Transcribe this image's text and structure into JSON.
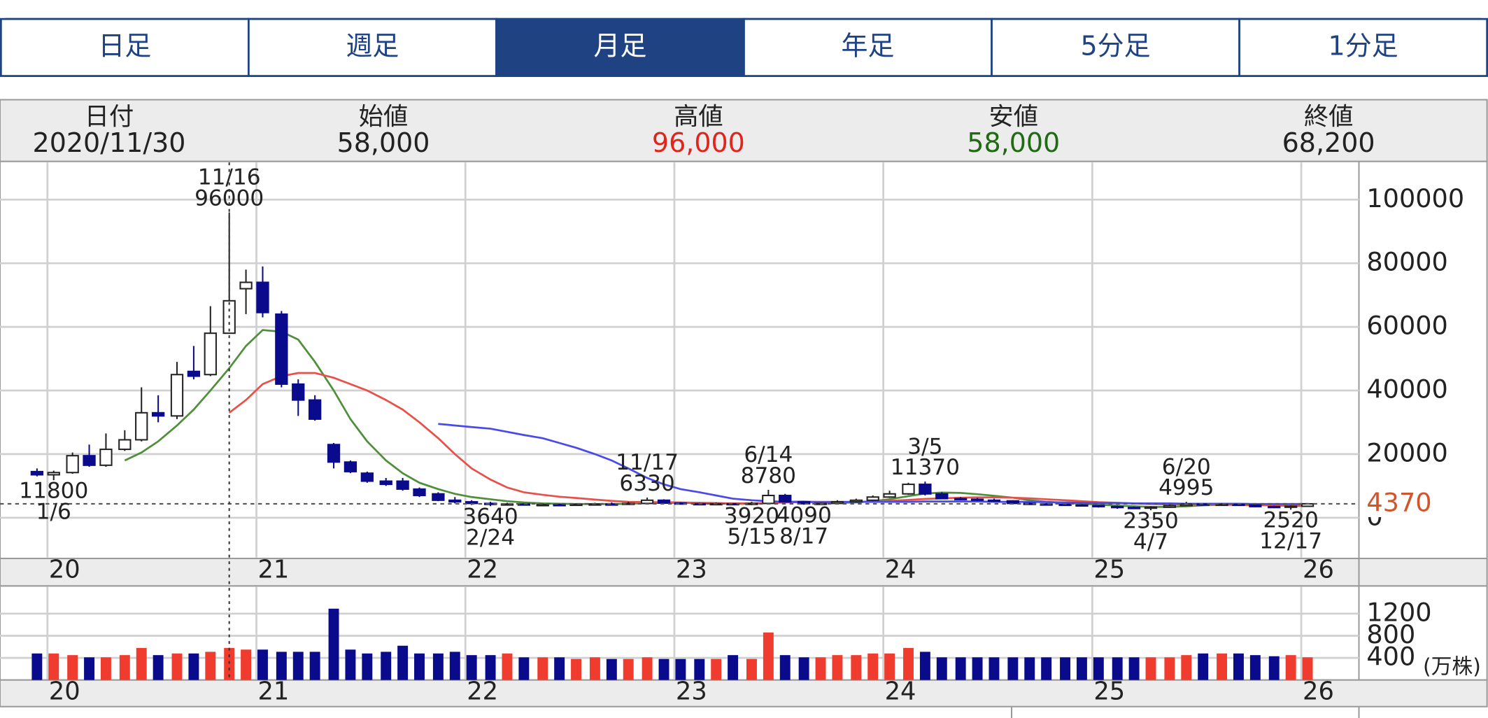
{
  "tabs": [
    "日足",
    "週足",
    "月足",
    "年足",
    "5分足",
    "1分足"
  ],
  "selected_tab": "月足",
  "quote": [
    {
      "label": "日付",
      "value": "2020/11/30",
      "color": "#222222"
    },
    {
      "label": "始値",
      "value": "58,000",
      "color": "#222222"
    },
    {
      "label": "高値",
      "value": "96,000",
      "color": "#e0261c"
    },
    {
      "label": "安値",
      "value": "58,000",
      "color": "#1e6b12"
    },
    {
      "label": "終値",
      "value": "68,200",
      "color": "#222222"
    }
  ],
  "chart_data": [
    {
      "type": "candlestick",
      "x": [
        2019.95,
        2020.03,
        2020.12,
        2020.2,
        2020.28,
        2020.37,
        2020.45,
        2020.53,
        2020.62,
        2020.7,
        2020.78,
        2020.87,
        2020.95,
        2021.03,
        2021.12,
        2021.2,
        2021.28,
        2021.37,
        2021.45,
        2021.53,
        2021.62,
        2021.7,
        2021.78,
        2021.87,
        2021.95,
        2022.03,
        2022.12,
        2022.2,
        2022.28,
        2022.37,
        2022.45,
        2022.53,
        2022.62,
        2022.7,
        2022.78,
        2022.87,
        2022.95,
        2023.03,
        2023.12,
        2023.2,
        2023.28,
        2023.37,
        2023.45,
        2023.53,
        2023.62,
        2023.7,
        2023.78,
        2023.87,
        2023.95,
        2024.03,
        2024.12,
        2024.2,
        2024.28,
        2024.37,
        2024.45,
        2024.53,
        2024.62,
        2024.7,
        2024.78,
        2024.87,
        2024.95,
        2025.03,
        2025.12,
        2025.2,
        2025.28,
        2025.37,
        2025.45,
        2025.53,
        2025.62,
        2025.7,
        2025.78,
        2025.87,
        2025.95,
        2026.03
      ],
      "open": [
        14500,
        13500,
        14200,
        19500,
        16500,
        21500,
        24500,
        33000,
        32000,
        46000,
        45000,
        58000,
        72000,
        74000,
        64000,
        42000,
        37000,
        23000,
        17500,
        14000,
        11500,
        11500,
        9000,
        7500,
        5500,
        5000,
        4500,
        4200,
        4300,
        4000,
        4100,
        4000,
        4200,
        4300,
        4200,
        4500,
        5500,
        4600,
        4400,
        4300,
        4400,
        4200,
        4500,
        7000,
        5000,
        4400,
        4500,
        5000,
        5500,
        6500,
        7500,
        10500,
        7500,
        6000,
        5800,
        5500,
        5300,
        4500,
        4300,
        4200,
        4000,
        3800,
        3500,
        3200,
        3000,
        3300,
        3800,
        4300,
        4000,
        4200,
        4000,
        3500,
        3300,
        3600
      ],
      "high": [
        15500,
        14800,
        20500,
        23000,
        26500,
        27500,
        41000,
        38500,
        49000,
        54000,
        66500,
        96000,
        78000,
        79000,
        65000,
        43500,
        38500,
        23500,
        18000,
        14500,
        12500,
        12500,
        9500,
        8000,
        6500,
        5500,
        5000,
        4700,
        4600,
        4500,
        4400,
        4500,
        4700,
        4800,
        5000,
        6330,
        5800,
        4900,
        4700,
        4800,
        4600,
        5000,
        8780,
        7500,
        5200,
        4800,
        5500,
        6000,
        7000,
        8500,
        11000,
        11370,
        8000,
        6500,
        6200,
        6000,
        5500,
        4800,
        4600,
        4500,
        4300,
        4000,
        3800,
        3500,
        3600,
        4200,
        4995,
        4600,
        4600,
        4500,
        4200,
        3800,
        3900,
        4600
      ],
      "low": [
        13000,
        11800,
        13800,
        16000,
        16000,
        21000,
        24000,
        30000,
        31000,
        43500,
        44500,
        58000,
        64000,
        63000,
        41000,
        32000,
        30500,
        15500,
        14000,
        11000,
        10000,
        8500,
        6500,
        5200,
        4500,
        4000,
        3640,
        3900,
        3800,
        3800,
        3800,
        3900,
        4000,
        4000,
        4100,
        4400,
        4500,
        4200,
        4100,
        4100,
        4000,
        3920,
        4400,
        4800,
        4090,
        4200,
        4300,
        4800,
        5200,
        6200,
        7200,
        7000,
        5800,
        5500,
        5200,
        5000,
        4200,
        4100,
        4000,
        3800,
        3500,
        3200,
        2800,
        2700,
        2350,
        3200,
        3700,
        3800,
        3800,
        3700,
        3300,
        3000,
        2520,
        3500
      ],
      "close": [
        13500,
        14200,
        19500,
        16500,
        21500,
        24500,
        33000,
        32000,
        45000,
        44500,
        58000,
        68200,
        74000,
        64500,
        42000,
        37000,
        31000,
        17500,
        14500,
        11500,
        10500,
        9000,
        7000,
        5500,
        5000,
        4500,
        4200,
        4300,
        4000,
        4100,
        4000,
        4200,
        4300,
        4200,
        4500,
        5500,
        4600,
        4400,
        4300,
        4400,
        4200,
        4500,
        7000,
        5000,
        4400,
        4500,
        5000,
        5500,
        6500,
        7500,
        10500,
        7500,
        6000,
        5800,
        5500,
        5300,
        4500,
        4300,
        4200,
        4000,
        3800,
        3500,
        3200,
        3000,
        3300,
        3800,
        4300,
        4000,
        4200,
        4000,
        3500,
        3300,
        3600,
        4370
      ],
      "up_color": "#ffffff",
      "down_color": "#0a0a8c",
      "outline_color": "#222222",
      "series": [
        {
          "color": "#4f8f3a",
          "values": [
            null,
            null,
            null,
            null,
            null,
            18000,
            20500,
            24000,
            29000,
            34000,
            40000,
            47000,
            54000,
            59000,
            58500,
            56000,
            49000,
            40000,
            31000,
            24000,
            18000,
            14000,
            11000,
            9000,
            7500,
            6500,
            5800,
            5200,
            4800,
            4500,
            4400,
            4300,
            4300,
            4300,
            4400,
            4600,
            4700,
            4700,
            4600,
            4500,
            4400,
            4400,
            4700,
            5000,
            5100,
            4900,
            4700,
            4800,
            5200,
            5800,
            6800,
            7600,
            7900,
            7800,
            7400,
            6900,
            6300,
            5500,
            5000,
            4700,
            4400,
            4100,
            3800,
            3600,
            3400,
            3400,
            3600,
            3900,
            4100,
            4200,
            4100,
            3900,
            3700,
            3700
          ]
        },
        {
          "color": "#e8504a",
          "values": [
            null,
            null,
            null,
            null,
            null,
            null,
            null,
            null,
            null,
            null,
            null,
            33000,
            37000,
            42000,
            44500,
            45500,
            45500,
            44000,
            42000,
            40000,
            37000,
            34000,
            30000,
            25000,
            20000,
            15500,
            12000,
            9500,
            8000,
            7200,
            6600,
            6200,
            5700,
            5300,
            5000,
            4900,
            4900,
            4800,
            4700,
            4600,
            4500,
            4500,
            4600,
            4800,
            5000,
            5000,
            5000,
            5000,
            5100,
            5300,
            5600,
            5900,
            6100,
            6300,
            6400,
            6400,
            6300,
            6100,
            5800,
            5500,
            5200,
            4900,
            4700,
            4500,
            4300,
            4200,
            4100,
            4100,
            4100,
            4000,
            4000,
            3900,
            3900,
            3900
          ]
        },
        {
          "color": "#4a4ae8",
          "values": [
            null,
            null,
            null,
            null,
            null,
            null,
            null,
            null,
            null,
            null,
            null,
            null,
            null,
            null,
            null,
            null,
            null,
            null,
            null,
            null,
            null,
            null,
            null,
            29500,
            29000,
            28500,
            28000,
            27000,
            26000,
            25000,
            23500,
            22000,
            20000,
            18000,
            15500,
            12500,
            10500,
            9000,
            8000,
            7000,
            6000,
            5500,
            5200,
            5000,
            4900,
            4900,
            4900,
            5000,
            5000,
            5000,
            5000,
            5100,
            5100,
            5100,
            5100,
            5000,
            5000,
            5000,
            4900,
            4800,
            4700,
            4600,
            4600,
            4500,
            4500,
            4500,
            4400,
            4400,
            4400,
            4400,
            4300,
            4300,
            4300,
            4300
          ]
        }
      ],
      "xlim": [
        2019.773,
        2026.276
      ],
      "xticks": [
        {
          "value": 2020,
          "label": "20"
        },
        {
          "value": 2021,
          "label": "21"
        },
        {
          "value": 2022,
          "label": "22"
        },
        {
          "value": 2023,
          "label": "23"
        },
        {
          "value": 2024,
          "label": "24"
        },
        {
          "value": 2025,
          "label": "25"
        },
        {
          "value": 2026,
          "label": "26"
        }
      ],
      "ylim": [
        -12800,
        112000
      ],
      "yticks": [
        0,
        20000,
        40000,
        60000,
        80000,
        100000
      ],
      "grid": true,
      "last_price": 4370,
      "last_price_color": "#d2542a",
      "annotations": [
        {
          "label": "11/16",
          "value": 96000
        },
        {
          "label": "1/6",
          "value": 11800
        },
        {
          "label": "2/24",
          "value": 3640
        },
        {
          "label": "11/17",
          "value": 6330
        },
        {
          "label": "6/14",
          "value": 8780
        },
        {
          "label": "5/15",
          "value": 3920
        },
        {
          "label": "8/17",
          "value": 4090
        },
        {
          "label": "3/5",
          "value": 11370
        },
        {
          "label": "4/7",
          "value": 2350
        },
        {
          "label": "6/20",
          "value": 4995
        },
        {
          "label": "12/17",
          "value": 2520
        }
      ]
    },
    {
      "type": "bar",
      "x": [
        2019.95,
        2020.03,
        2020.12,
        2020.2,
        2020.28,
        2020.37,
        2020.45,
        2020.53,
        2020.62,
        2020.7,
        2020.78,
        2020.87,
        2020.95,
        2021.03,
        2021.12,
        2021.2,
        2021.28,
        2021.37,
        2021.45,
        2021.53,
        2021.62,
        2021.7,
        2021.78,
        2021.87,
        2021.95,
        2022.03,
        2022.12,
        2022.2,
        2022.28,
        2022.37,
        2022.45,
        2022.53,
        2022.62,
        2022.7,
        2022.78,
        2022.87,
        2022.95,
        2023.03,
        2023.12,
        2023.2,
        2023.28,
        2023.37,
        2023.45,
        2023.53,
        2023.62,
        2023.7,
        2023.78,
        2023.87,
        2023.95,
        2024.03,
        2024.12,
        2024.2,
        2024.28,
        2024.37,
        2024.45,
        2024.53,
        2024.62,
        2024.7,
        2024.78,
        2024.87,
        2024.95,
        2025.03,
        2025.12,
        2025.2,
        2025.28,
        2025.37,
        2025.45,
        2025.53,
        2025.62,
        2025.7,
        2025.78,
        2025.87,
        2025.95,
        2026.03
      ],
      "values": [
        480,
        480,
        450,
        410,
        410,
        450,
        580,
        450,
        480,
        480,
        510,
        580,
        550,
        550,
        510,
        510,
        510,
        1290,
        550,
        480,
        510,
        620,
        480,
        480,
        510,
        450,
        450,
        480,
        410,
        410,
        410,
        380,
        410,
        380,
        380,
        410,
        380,
        380,
        380,
        380,
        450,
        380,
        860,
        450,
        410,
        410,
        450,
        450,
        480,
        480,
        580,
        510,
        410,
        410,
        410,
        410,
        410,
        410,
        410,
        410,
        410,
        410,
        410,
        410,
        410,
        410,
        450,
        480,
        480,
        480,
        450,
        430,
        450,
        410
      ],
      "up_color": "#f03c2e",
      "down_color": "#0a0a8c",
      "xlim": [
        2019.773,
        2026.276
      ],
      "xticks": [
        {
          "value": 2020,
          "label": "20"
        },
        {
          "value": 2021,
          "label": "21"
        },
        {
          "value": 2022,
          "label": "22"
        },
        {
          "value": 2023,
          "label": "23"
        },
        {
          "value": 2024,
          "label": "24"
        },
        {
          "value": 2025,
          "label": "25"
        },
        {
          "value": 2026,
          "label": "26"
        }
      ],
      "ylim": [
        0,
        1700
      ],
      "yticks": [
        400,
        800,
        1200
      ],
      "grid": true,
      "unit_label": "(万株)"
    }
  ]
}
